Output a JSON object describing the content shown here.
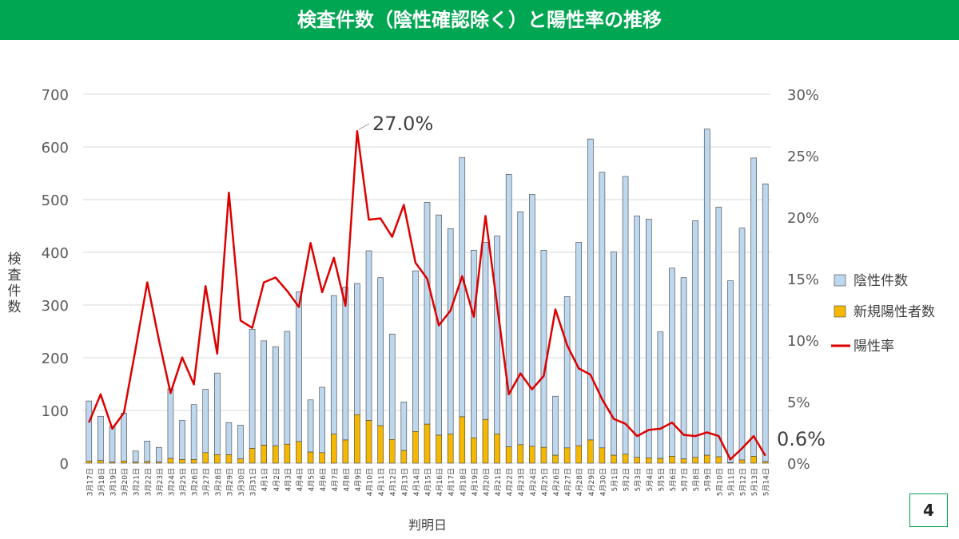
{
  "header": {
    "title": "検査件数（陰性確認除く）と陽性率の推移"
  },
  "page": {
    "number": "4"
  },
  "colors": {
    "header_bg": "#00a651",
    "negative": "#bdd7ee",
    "positive": "#f5b800",
    "rate": "#dd0000"
  },
  "chart_data": {
    "type": "bar",
    "stacked": true,
    "xlabel": "判明日",
    "ylabel": "検査件数",
    "ylim": [
      0,
      700
    ],
    "y_ticks": [
      "0",
      "100",
      "200",
      "300",
      "400",
      "500",
      "600",
      "700"
    ],
    "y2lim": [
      0,
      30
    ],
    "y2_ticks": [
      "0%",
      "5%",
      "10%",
      "15%",
      "20%",
      "25%",
      "30%"
    ],
    "legend": {
      "position": "right",
      "entries": [
        "陰性件数",
        "新規陽性者数",
        "陽性率"
      ]
    },
    "annotations": [
      "27.0%",
      "0.6%"
    ],
    "categories": [
      "3月17日",
      "3月18日",
      "3月19日",
      "3月20日",
      "3月21日",
      "3月22日",
      "3月23日",
      "3月24日",
      "3月25日",
      "3月26日",
      "3月27日",
      "3月28日",
      "3月29日",
      "3月30日",
      "3月31日",
      "4月1日",
      "4月2日",
      "4月3日",
      "4月4日",
      "4月5日",
      "4月6日",
      "4月7日",
      "4月8日",
      "4月9日",
      "4月10日",
      "4月11日",
      "4月12日",
      "4月13日",
      "4月14日",
      "4月15日",
      "4月16日",
      "4月17日",
      "4月18日",
      "4月19日",
      "4月20日",
      "4月21日",
      "4月22日",
      "4月23日",
      "4月24日",
      "4月25日",
      "4月26日",
      "4月27日",
      "4月28日",
      "4月29日",
      "4月30日",
      "5月1日",
      "5月2日",
      "5月3日",
      "5月4日",
      "5月5日",
      "5月6日",
      "5月7日",
      "5月8日",
      "5月9日",
      "5月10日",
      "5月11日",
      "5月12日",
      "5月13日",
      "5月14日"
    ],
    "series": [
      {
        "name": "陰性件数",
        "kind": "bar",
        "values": [
          114,
          84,
          68,
          91,
          21,
          39,
          28,
          132,
          74,
          104,
          120,
          155,
          61,
          64,
          226,
          198,
          188,
          214,
          284,
          99,
          124,
          263,
          290,
          249,
          322,
          281,
          200,
          92,
          305,
          421,
          418,
          390,
          492,
          356,
          336,
          376,
          517,
          442,
          478,
          374,
          112,
          287,
          386,
          571,
          523,
          386,
          527,
          458,
          453,
          240,
          357,
          344,
          449,
          619,
          474,
          345,
          440,
          566,
          527
        ]
      },
      {
        "name": "新規陽性者数",
        "kind": "bar",
        "values": [
          4,
          5,
          2,
          4,
          2,
          3,
          2,
          9,
          7,
          7,
          20,
          16,
          16,
          8,
          28,
          34,
          33,
          36,
          41,
          21,
          20,
          55,
          44,
          92,
          81,
          71,
          45,
          24,
          60,
          74,
          53,
          55,
          88,
          48,
          83,
          55,
          31,
          35,
          32,
          30,
          15,
          29,
          33,
          44,
          29,
          15,
          17,
          11,
          10,
          9,
          13,
          8,
          11,
          15,
          12,
          1,
          6,
          13,
          3
        ]
      },
      {
        "name": "陽性率",
        "kind": "line",
        "axis": "right",
        "values": [
          3.3,
          5.6,
          2.8,
          4.1,
          9.3,
          14.7,
          10.0,
          5.7,
          8.6,
          6.4,
          14.4,
          8.9,
          22.0,
          11.6,
          11.0,
          14.7,
          15.1,
          14.0,
          12.7,
          17.9,
          13.9,
          16.7,
          12.8,
          27.0,
          19.8,
          19.9,
          18.4,
          21.0,
          16.3,
          15.0,
          11.2,
          12.4,
          15.2,
          11.9,
          20.1,
          12.8,
          5.6,
          7.3,
          6.0,
          7.1,
          12.5,
          9.6,
          7.7,
          7.2,
          5.2,
          3.6,
          3.2,
          2.2,
          2.7,
          2.8,
          3.3,
          2.3,
          2.2,
          2.5,
          2.2,
          0.3,
          1.2,
          2.2,
          0.6
        ]
      }
    ]
  }
}
